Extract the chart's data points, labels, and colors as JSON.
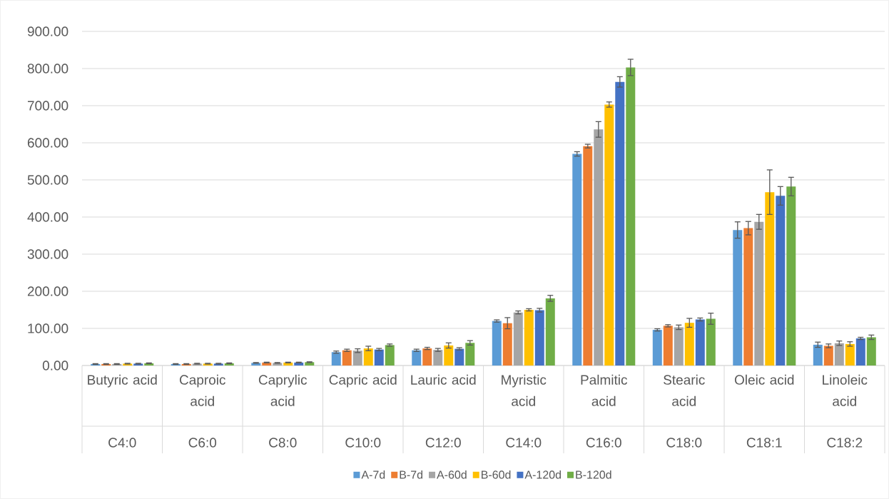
{
  "chart_data": {
    "type": "bar",
    "categories": [
      "Butyric acid",
      "Caproic acid",
      "Caprylic acid",
      "Capric acid",
      "Lauric acid",
      "Myristic acid",
      "Palmitic acid",
      "Stearic acid",
      "Oleic acid",
      "Linoleic acid"
    ],
    "annotations": [
      "C4:0",
      "C6:0",
      "C8:0",
      "C10:0",
      "C12:0",
      "C14:0",
      "C16:0",
      "C18:0",
      "C18:1",
      "C18:2"
    ],
    "series": [
      {
        "name": "A-7d",
        "color": "#5b9bd5",
        "values": [
          4,
          4,
          7,
          36,
          41,
          120,
          570,
          96,
          365,
          56
        ],
        "errors": [
          1,
          1,
          1,
          3,
          3,
          3,
          6,
          3,
          22,
          7
        ]
      },
      {
        "name": "B-7d",
        "color": "#ed7d31",
        "values": [
          4,
          4,
          8,
          41,
          46,
          114,
          591,
          107,
          370,
          53
        ],
        "errors": [
          1,
          1,
          1,
          3,
          3,
          15,
          5,
          3,
          18,
          5
        ]
      },
      {
        "name": "A-60d",
        "color": "#a5a5a5",
        "values": [
          4,
          5,
          7,
          40,
          42,
          143,
          636,
          103,
          387,
          60
        ],
        "errors": [
          1,
          1,
          1,
          5,
          4,
          4,
          21,
          6,
          20,
          6
        ]
      },
      {
        "name": "B-60d",
        "color": "#ffc000",
        "values": [
          5,
          5,
          8,
          46,
          54,
          150,
          703,
          115,
          467,
          58
        ],
        "errors": [
          1,
          1,
          1,
          6,
          7,
          3,
          7,
          12,
          60,
          6
        ]
      },
      {
        "name": "A-120d",
        "color": "#4472c4",
        "values": [
          5,
          5,
          8,
          43,
          45,
          149,
          764,
          124,
          457,
          73
        ],
        "errors": [
          1,
          1,
          1,
          3,
          3,
          5,
          14,
          4,
          25,
          3
        ]
      },
      {
        "name": "B-120d",
        "color": "#70ad47",
        "values": [
          6,
          6,
          9,
          55,
          61,
          181,
          803,
          126,
          482,
          76
        ],
        "errors": [
          1,
          1,
          1,
          3,
          6,
          8,
          22,
          15,
          25,
          6
        ]
      }
    ],
    "ylim": [
      0,
      900
    ],
    "yticks": [
      {
        "value": 0,
        "label": "0.00"
      },
      {
        "value": 100,
        "label": "100.00"
      },
      {
        "value": 200,
        "label": "200.00"
      },
      {
        "value": 300,
        "label": "300.00"
      },
      {
        "value": 400,
        "label": "400.00"
      },
      {
        "value": 500,
        "label": "500.00"
      },
      {
        "value": 600,
        "label": "600.00"
      },
      {
        "value": 700,
        "label": "700.00"
      },
      {
        "value": 800,
        "label": "800.00"
      },
      {
        "value": 900,
        "label": "900.00"
      }
    ],
    "grid": "y",
    "legend": "bottom"
  }
}
